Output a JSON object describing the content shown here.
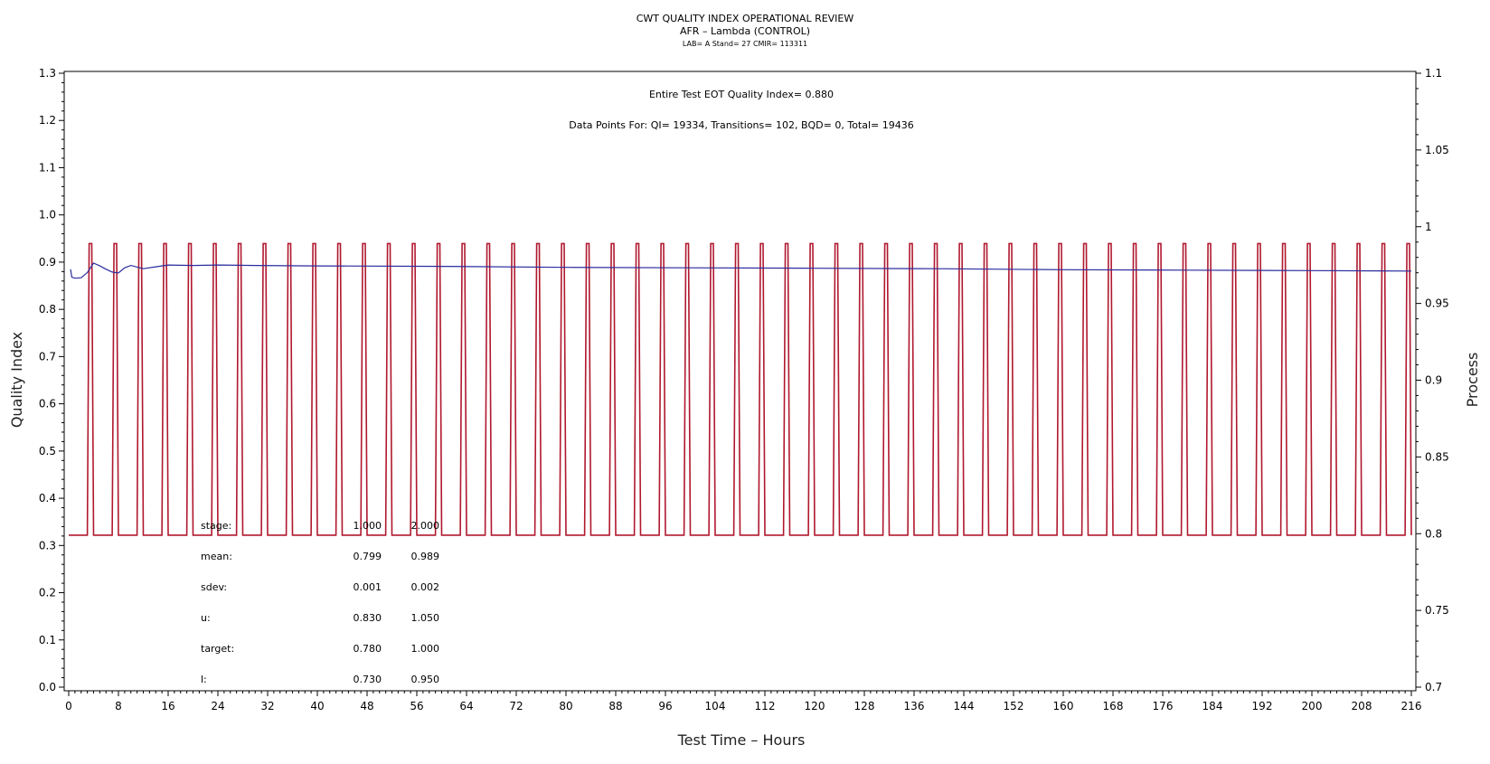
{
  "header": {
    "title": "CWT QUALITY INDEX OPERATIONAL REVIEW",
    "subtitle": "AFR – Lambda (CONTROL)",
    "info": "LAB= A Stand= 27 CMIR= 113311"
  },
  "annotations": {
    "eot": "Entire Test EOT Quality Index=   0.880",
    "data_points": "Data Points For: QI= 19334, Transitions=   102, BQD=     0, Total= 19436"
  },
  "stats_table": {
    "rows": [
      {
        "label": "stage:",
        "v1": "1.000",
        "v2": "2.000"
      },
      {
        "label": "mean:",
        "v1": "0.799",
        "v2": "0.989"
      },
      {
        "label": "sdev:",
        "v1": "0.001",
        "v2": "0.002"
      },
      {
        "label": "u:",
        "v1": "0.830",
        "v2": "1.050"
      },
      {
        "label": "target:",
        "v1": "0.780",
        "v2": "1.000"
      },
      {
        "label": "l:",
        "v1": "0.730",
        "v2": "0.950"
      }
    ]
  },
  "colors": {
    "process": "#b0182e",
    "quality": "#2b2b9e",
    "axis": "#000000"
  },
  "chart_data": {
    "type": "line",
    "xlabel": "Test Time – Hours",
    "ylabel": "Quality Index",
    "y2label": "Process",
    "xlim": [
      0,
      216
    ],
    "ylim": [
      0.0,
      1.3
    ],
    "y2lim": [
      0.7,
      1.1
    ],
    "x_ticks": [
      0,
      8,
      16,
      24,
      32,
      40,
      48,
      56,
      64,
      72,
      80,
      88,
      96,
      104,
      112,
      120,
      128,
      136,
      144,
      152,
      160,
      168,
      176,
      184,
      192,
      200,
      208,
      216
    ],
    "y_ticks": [
      "0.0",
      "0.1",
      "0.2",
      "0.3",
      "0.4",
      "0.5",
      "0.6",
      "0.7",
      "0.8",
      "0.9",
      "1.0",
      "1.1",
      "1.2",
      "1.3"
    ],
    "y2_ticks": [
      "0.7",
      "0.75",
      "0.8",
      "0.85",
      "0.9",
      "0.95",
      "1",
      "1.05",
      "1.1"
    ],
    "grid": false,
    "series": [
      {
        "name": "",
        "axis": "left",
        "color": "#2b2b9e",
        "x": [
          0.3,
          0.5,
          1,
          2,
          3,
          4,
          5,
          6,
          7,
          8,
          9,
          10,
          12,
          14,
          16,
          20,
          24,
          30,
          40,
          60,
          80,
          100,
          120,
          140,
          160,
          180,
          200,
          216
        ],
        "y": [
          0.885,
          0.868,
          0.866,
          0.867,
          0.878,
          0.898,
          0.892,
          0.885,
          0.879,
          0.877,
          0.888,
          0.893,
          0.886,
          0.89,
          0.894,
          0.893,
          0.894,
          0.893,
          0.892,
          0.891,
          0.889,
          0.888,
          0.887,
          0.886,
          0.884,
          0.883,
          0.882,
          0.881
        ]
      },
      {
        "name": "",
        "axis": "right",
        "color": "#b0182e",
        "stage_low": 0.799,
        "stage_high": 0.989,
        "high_intervals": [
          [
            3,
            4
          ],
          [
            7,
            8
          ],
          [
            11,
            12
          ],
          [
            15,
            16
          ],
          [
            19,
            20
          ],
          [
            23,
            24
          ],
          [
            27,
            28
          ],
          [
            31,
            32
          ],
          [
            35,
            36
          ],
          [
            39,
            40
          ],
          [
            43,
            44
          ],
          [
            47,
            48
          ],
          [
            51,
            52
          ],
          [
            55,
            56
          ],
          [
            59,
            60
          ],
          [
            63,
            64
          ],
          [
            67,
            68
          ],
          [
            71,
            72
          ],
          [
            75,
            76
          ],
          [
            79,
            80
          ],
          [
            83,
            84
          ],
          [
            87,
            88
          ],
          [
            91,
            92
          ],
          [
            95,
            96
          ],
          [
            99,
            100
          ],
          [
            103,
            104
          ],
          [
            107,
            108
          ],
          [
            111,
            112
          ],
          [
            115,
            116
          ],
          [
            119,
            120
          ],
          [
            123,
            124
          ],
          [
            127,
            128
          ],
          [
            131,
            132
          ],
          [
            135,
            136
          ],
          [
            139,
            140
          ],
          [
            143,
            144
          ],
          [
            147,
            148
          ],
          [
            151,
            152
          ],
          [
            155,
            156
          ],
          [
            159,
            160
          ],
          [
            163,
            164
          ],
          [
            167,
            168
          ],
          [
            171,
            172
          ],
          [
            175,
            176
          ],
          [
            179,
            180
          ],
          [
            183,
            184
          ],
          [
            187,
            188
          ],
          [
            191,
            192
          ],
          [
            195,
            196
          ],
          [
            199,
            200
          ],
          [
            203,
            204
          ],
          [
            207,
            208
          ],
          [
            211,
            212
          ],
          [
            215,
            216
          ]
        ]
      }
    ]
  }
}
